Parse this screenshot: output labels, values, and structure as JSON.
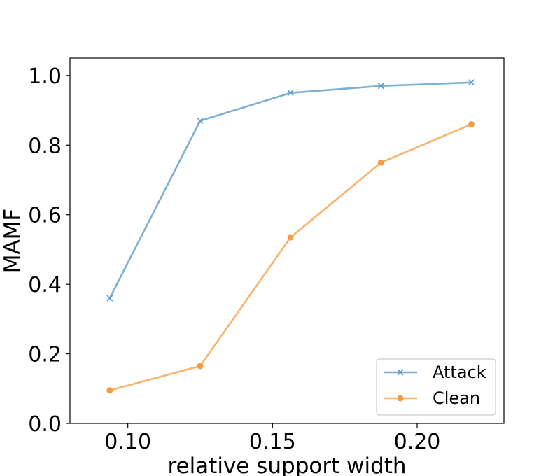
{
  "chart_data": {
    "type": "line",
    "title": "",
    "xlabel": "relative support width",
    "ylabel": "MAMF",
    "xlim": [
      0.08,
      0.23
    ],
    "ylim": [
      0.0,
      1.05
    ],
    "x_ticks": [
      0.1,
      0.15,
      0.2
    ],
    "x_tick_labels": [
      "0.10",
      "0.15",
      "0.20"
    ],
    "y_ticks": [
      0.0,
      0.2,
      0.4,
      0.6,
      0.8,
      1.0
    ],
    "y_tick_labels": [
      "0.0",
      "0.2",
      "0.4",
      "0.6",
      "0.8",
      "1.0"
    ],
    "grid": false,
    "legend_position": "lower-right",
    "x": [
      0.09375,
      0.125,
      0.15625,
      0.1875,
      0.21875
    ],
    "series": [
      {
        "name": "Attack",
        "values": [
          0.36,
          0.87,
          0.95,
          0.97,
          0.98
        ],
        "color": "#7bafd4",
        "marker": "x"
      },
      {
        "name": "Clean",
        "values": [
          0.095,
          0.165,
          0.535,
          0.75,
          0.86
        ],
        "color": "#f9b36d",
        "marker": "o"
      }
    ]
  }
}
